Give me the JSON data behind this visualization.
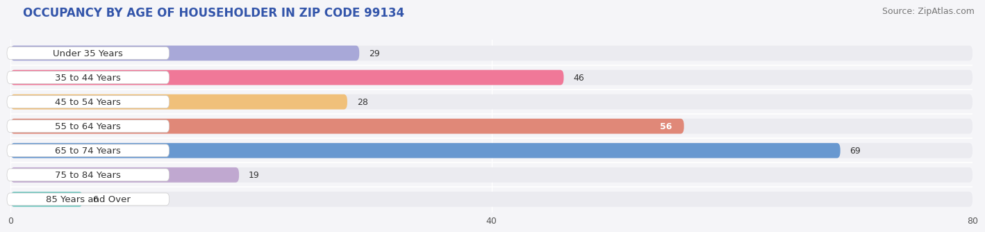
{
  "title": "OCCUPANCY BY AGE OF HOUSEHOLDER IN ZIP CODE 99134",
  "source": "Source: ZipAtlas.com",
  "categories": [
    "Under 35 Years",
    "35 to 44 Years",
    "45 to 54 Years",
    "55 to 64 Years",
    "65 to 74 Years",
    "75 to 84 Years",
    "85 Years and Over"
  ],
  "values": [
    29,
    46,
    28,
    56,
    69,
    19,
    6
  ],
  "bar_colors": [
    "#a8a8d8",
    "#f07898",
    "#f0c07a",
    "#e08878",
    "#6898d0",
    "#c0a8d0",
    "#70c8c0"
  ],
  "bar_bg_color": "#ebebf0",
  "xlim_min": 0,
  "xlim_max": 80,
  "xticks": [
    0,
    40,
    80
  ],
  "value_inside": [
    false,
    false,
    false,
    true,
    false,
    false,
    false
  ],
  "title_fontsize": 12,
  "source_fontsize": 9,
  "label_fontsize": 9.5,
  "value_fontsize": 9,
  "tick_fontsize": 9,
  "background_color": "#f5f5f8",
  "title_color": "#3355aa",
  "source_color": "#777777",
  "label_color": "#333333",
  "value_color_dark": "#333333",
  "value_color_light": "#ffffff"
}
